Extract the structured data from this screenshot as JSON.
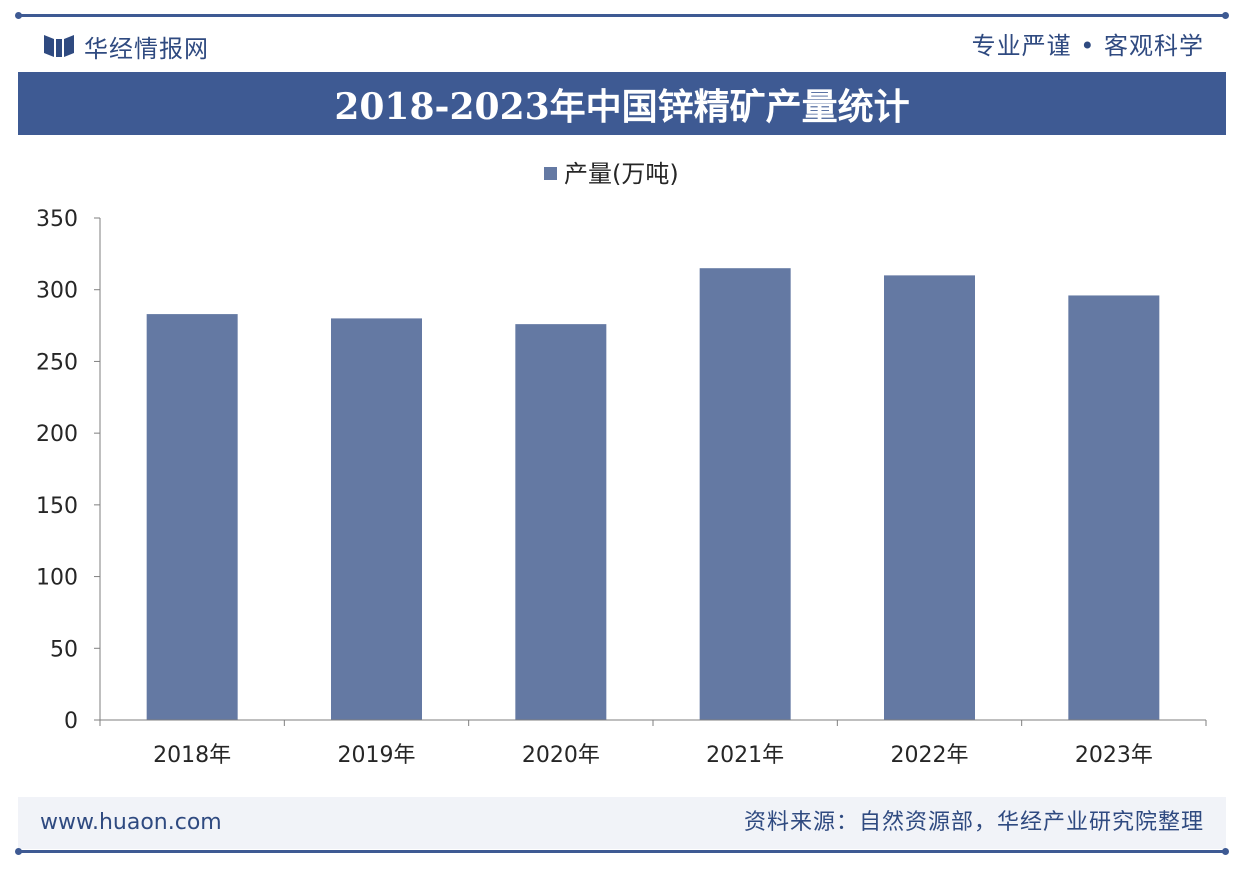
{
  "header": {
    "brand_name": "华经情报网",
    "slogan": "专业严谨 • 客观科学"
  },
  "title": "2018-2023年中国锌精矿产量统计",
  "footer": {
    "website": "www.huaon.com",
    "source": "资料来源：自然资源部，华经产业研究院整理"
  },
  "colors": {
    "bar": "#6479a3",
    "brand": "#3e5a93",
    "axis": "#7f7f7f",
    "text": "#262626"
  },
  "chart_data": {
    "type": "bar",
    "categories": [
      "2018年",
      "2019年",
      "2020年",
      "2021年",
      "2022年",
      "2023年"
    ],
    "series": [
      {
        "name": "产量(万吨)",
        "values": [
          283,
          280,
          276,
          315,
          310,
          296
        ]
      }
    ],
    "ylim": [
      0,
      350
    ],
    "yticks": [
      0,
      50,
      100,
      150,
      200,
      250,
      300,
      350
    ],
    "grid": false,
    "legend": "top-center"
  }
}
